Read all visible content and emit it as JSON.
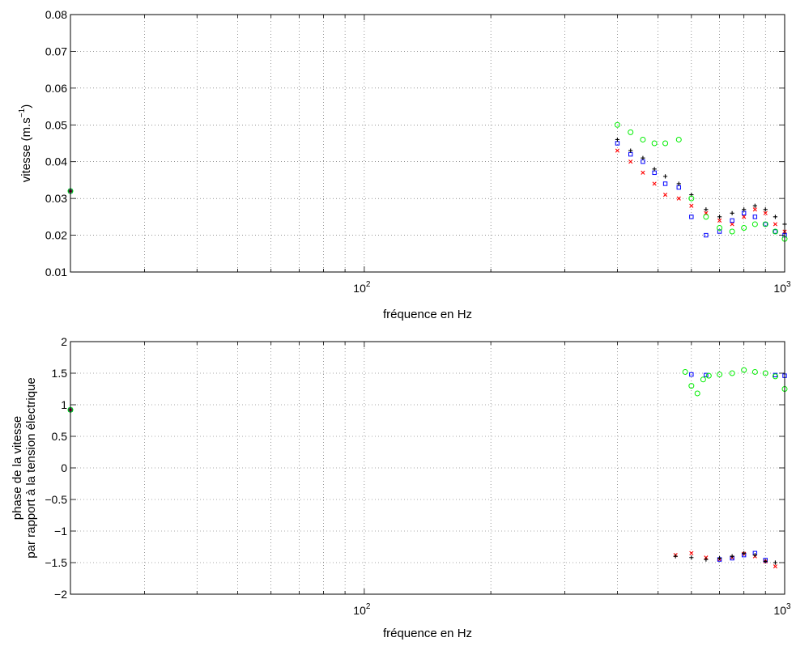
{
  "chart_data": [
    {
      "type": "scatter",
      "xscale": "log",
      "xlim": [
        20,
        1000
      ],
      "ylim": [
        0.01,
        0.08
      ],
      "xlabel": "fréquence en Hz",
      "ylabel": "vitesse (m.s⁻¹)",
      "ylabel_base": "vitesse (m.s",
      "ylabel_exp": "−1",
      "ylabel_close": ")",
      "grid": true,
      "yticks": [
        0.01,
        0.02,
        0.03,
        0.04,
        0.05,
        0.06,
        0.07,
        0.08
      ],
      "ytick_labels": [
        "0.01",
        "0.02",
        "0.03",
        "0.04",
        "0.05",
        "0.06",
        "0.07",
        "0.08"
      ],
      "xtick_major": [
        {
          "value": 100,
          "base": "10",
          "exp": "2"
        },
        {
          "value": 1000,
          "base": "10",
          "exp": "3"
        }
      ],
      "series": [
        {
          "marker": "x",
          "color": "#ff0000",
          "x": [
            20,
            400,
            430,
            460,
            490,
            520,
            560,
            600,
            650,
            700,
            750,
            800,
            850,
            900,
            950,
            1000
          ],
          "y": [
            0.032,
            0.043,
            0.04,
            0.037,
            0.034,
            0.031,
            0.03,
            0.028,
            0.026,
            0.024,
            0.023,
            0.025,
            0.027,
            0.026,
            0.023,
            0.021
          ]
        },
        {
          "marker": "square",
          "color": "#0000ff",
          "x": [
            20,
            400,
            430,
            460,
            490,
            520,
            560,
            600,
            650,
            700,
            750,
            800,
            850,
            900,
            950,
            1000
          ],
          "y": [
            0.032,
            0.045,
            0.042,
            0.04,
            0.037,
            0.034,
            0.033,
            0.025,
            0.02,
            0.021,
            0.024,
            0.026,
            0.025,
            0.023,
            0.021,
            0.02
          ]
        },
        {
          "marker": "plus",
          "color": "#000000",
          "x": [
            20,
            400,
            430,
            460,
            490,
            520,
            560,
            600,
            650,
            700,
            750,
            800,
            850,
            900,
            950,
            1000
          ],
          "y": [
            0.032,
            0.046,
            0.043,
            0.041,
            0.038,
            0.036,
            0.034,
            0.031,
            0.027,
            0.025,
            0.026,
            0.027,
            0.028,
            0.027,
            0.025,
            0.023
          ]
        },
        {
          "marker": "circle",
          "color": "#00ee00",
          "x": [
            20,
            400,
            430,
            460,
            490,
            520,
            560,
            600,
            650,
            700,
            750,
            800,
            850,
            900,
            950,
            1000
          ],
          "y": [
            0.032,
            0.05,
            0.048,
            0.046,
            0.045,
            0.045,
            0.046,
            0.03,
            0.025,
            0.022,
            0.021,
            0.022,
            0.023,
            0.023,
            0.021,
            0.019
          ]
        }
      ]
    },
    {
      "type": "scatter",
      "xscale": "log",
      "xlim": [
        20,
        1000
      ],
      "ylim": [
        -2,
        2
      ],
      "xlabel": "fréquence en Hz",
      "ylabel_lines": [
        "phase de la vitesse",
        "par rapport à la tension électrique"
      ],
      "grid": true,
      "yticks": [
        -2,
        -1.5,
        -1,
        -0.5,
        0,
        0.5,
        1,
        1.5,
        2
      ],
      "ytick_labels": [
        "−2",
        "−1.5",
        "−1",
        "−0.5",
        "0",
        "0.5",
        "1",
        "1.5",
        "2"
      ],
      "xtick_major": [
        {
          "value": 100,
          "base": "10",
          "exp": "2"
        },
        {
          "value": 1000,
          "base": "10",
          "exp": "3"
        }
      ],
      "series": [
        {
          "marker": "x",
          "color": "#ff0000",
          "x": [
            20,
            550,
            600,
            650,
            700,
            750,
            800,
            850,
            900,
            950
          ],
          "y": [
            0.92,
            -1.38,
            -1.35,
            -1.42,
            -1.45,
            -1.42,
            -1.36,
            -1.4,
            -1.48,
            -1.56
          ]
        },
        {
          "marker": "square",
          "color": "#0000ff",
          "x": [
            20,
            600,
            650,
            700,
            750,
            800,
            850,
            900,
            950,
            1000
          ],
          "y": [
            0.92,
            1.48,
            1.47,
            -1.45,
            -1.43,
            -1.38,
            -1.35,
            -1.46,
            1.47,
            1.46
          ]
        },
        {
          "marker": "plus",
          "color": "#000000",
          "x": [
            20,
            550,
            600,
            650,
            700,
            750,
            800,
            850,
            900,
            950
          ],
          "y": [
            0.92,
            -1.4,
            -1.42,
            -1.45,
            -1.43,
            -1.4,
            -1.35,
            -1.38,
            -1.48,
            -1.5
          ]
        },
        {
          "marker": "circle",
          "color": "#00ee00",
          "x": [
            20,
            580,
            600,
            620,
            640,
            660,
            700,
            750,
            800,
            850,
            900,
            950,
            1000
          ],
          "y": [
            0.92,
            1.52,
            1.3,
            1.18,
            1.4,
            1.46,
            1.48,
            1.5,
            1.55,
            1.52,
            1.5,
            1.45,
            1.25
          ]
        }
      ]
    }
  ]
}
